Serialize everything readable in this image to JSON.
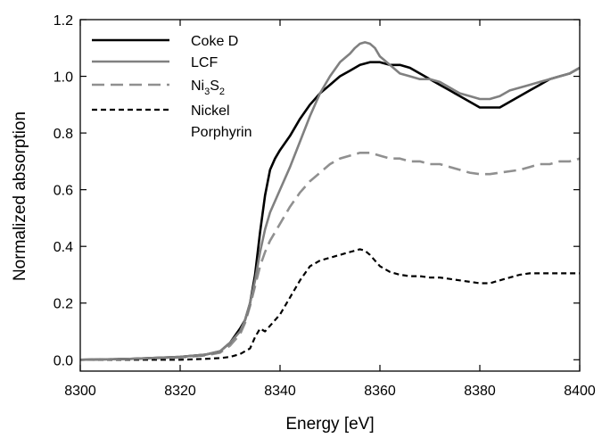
{
  "chart_data": {
    "type": "line",
    "title": "",
    "xlabel": "Energy [eV]",
    "ylabel": "Normalized absorption",
    "xlim": [
      8300,
      8400
    ],
    "ylim": [
      -0.04,
      1.2
    ],
    "xticks": [
      8300,
      8320,
      8340,
      8360,
      8380,
      8400
    ],
    "yticks": [
      0.0,
      0.2,
      0.4,
      0.6,
      0.8,
      1.0,
      1.2
    ],
    "xtick_labels": [
      "8300",
      "8320",
      "8340",
      "8360",
      "8380",
      "8400"
    ],
    "ytick_labels": [
      "0.0",
      "0.2",
      "0.4",
      "0.6",
      "0.8",
      "1.0",
      "1.2"
    ],
    "grid": false,
    "legend_position": "top-left",
    "series": [
      {
        "name": "Coke D",
        "color": "#000000",
        "dash": "solid",
        "x": [
          8300,
          8310,
          8320,
          8325,
          8328,
          8330,
          8332,
          8333,
          8334,
          8335,
          8336,
          8337,
          8338,
          8339,
          8340,
          8342,
          8344,
          8346,
          8348,
          8350,
          8352,
          8354,
          8356,
          8358,
          8360,
          8362,
          8364,
          8366,
          8368,
          8370,
          8372,
          8374,
          8376,
          8378,
          8380,
          8382,
          8384,
          8386,
          8388,
          8390,
          8392,
          8394,
          8396,
          8398,
          8400
        ],
        "y": [
          0.0,
          0.003,
          0.01,
          0.018,
          0.03,
          0.06,
          0.11,
          0.14,
          0.2,
          0.3,
          0.45,
          0.58,
          0.67,
          0.71,
          0.74,
          0.79,
          0.85,
          0.9,
          0.94,
          0.97,
          1.0,
          1.02,
          1.04,
          1.05,
          1.05,
          1.04,
          1.04,
          1.03,
          1.01,
          0.99,
          0.97,
          0.95,
          0.93,
          0.91,
          0.89,
          0.89,
          0.89,
          0.91,
          0.93,
          0.95,
          0.97,
          0.99,
          1.0,
          1.01,
          1.03
        ]
      },
      {
        "name": "LCF",
        "color": "#808080",
        "dash": "solid",
        "x": [
          8300,
          8310,
          8320,
          8325,
          8328,
          8330,
          8332,
          8333,
          8334,
          8335,
          8336,
          8337,
          8338,
          8339,
          8340,
          8342,
          8344,
          8346,
          8348,
          8350,
          8352,
          8354,
          8355,
          8356,
          8357,
          8358,
          8359,
          8360,
          8362,
          8364,
          8366,
          8368,
          8370,
          8372,
          8374,
          8376,
          8378,
          8380,
          8382,
          8384,
          8386,
          8388,
          8390,
          8392,
          8394,
          8396,
          8398,
          8400
        ],
        "y": [
          0.0,
          0.003,
          0.01,
          0.018,
          0.03,
          0.06,
          0.1,
          0.14,
          0.2,
          0.28,
          0.38,
          0.46,
          0.52,
          0.56,
          0.6,
          0.68,
          0.77,
          0.86,
          0.94,
          1.0,
          1.05,
          1.08,
          1.1,
          1.115,
          1.12,
          1.115,
          1.1,
          1.07,
          1.04,
          1.01,
          1.0,
          0.99,
          0.99,
          0.98,
          0.96,
          0.94,
          0.93,
          0.92,
          0.92,
          0.93,
          0.95,
          0.96,
          0.97,
          0.98,
          0.99,
          1.0,
          1.01,
          1.03
        ]
      },
      {
        "name": "Ni3S2",
        "color": "#909090",
        "dash": "long-dash",
        "x": [
          8300,
          8310,
          8320,
          8325,
          8328,
          8330,
          8332,
          8333,
          8334,
          8335,
          8336,
          8337,
          8338,
          8339,
          8340,
          8342,
          8344,
          8346,
          8348,
          8350,
          8352,
          8354,
          8356,
          8358,
          8360,
          8362,
          8364,
          8366,
          8368,
          8370,
          8372,
          8374,
          8376,
          8378,
          8380,
          8382,
          8384,
          8386,
          8388,
          8390,
          8392,
          8394,
          8396,
          8398,
          8400
        ],
        "y": [
          0.0,
          0.003,
          0.008,
          0.015,
          0.025,
          0.05,
          0.09,
          0.13,
          0.19,
          0.26,
          0.33,
          0.38,
          0.42,
          0.45,
          0.48,
          0.54,
          0.59,
          0.63,
          0.66,
          0.69,
          0.71,
          0.72,
          0.73,
          0.73,
          0.72,
          0.71,
          0.71,
          0.7,
          0.7,
          0.69,
          0.69,
          0.68,
          0.67,
          0.66,
          0.655,
          0.655,
          0.66,
          0.665,
          0.67,
          0.68,
          0.69,
          0.69,
          0.7,
          0.7,
          0.71
        ]
      },
      {
        "name": "Nickel Porphyrin",
        "color": "#000000",
        "dash": "short-dash",
        "x": [
          8300,
          8310,
          8320,
          8325,
          8328,
          8330,
          8332,
          8334,
          8335,
          8336,
          8337,
          8338,
          8340,
          8342,
          8344,
          8346,
          8348,
          8350,
          8352,
          8354,
          8355,
          8356,
          8357,
          8358,
          8360,
          8362,
          8364,
          8366,
          8368,
          8370,
          8372,
          8374,
          8376,
          8378,
          8380,
          8382,
          8384,
          8386,
          8388,
          8390,
          8392,
          8394,
          8396,
          8398,
          8400
        ],
        "y": [
          0.0,
          0.0,
          0.0,
          0.003,
          0.006,
          0.01,
          0.02,
          0.04,
          0.08,
          0.11,
          0.1,
          0.12,
          0.16,
          0.22,
          0.28,
          0.33,
          0.35,
          0.36,
          0.37,
          0.38,
          0.385,
          0.39,
          0.385,
          0.37,
          0.33,
          0.31,
          0.3,
          0.295,
          0.295,
          0.29,
          0.29,
          0.285,
          0.28,
          0.275,
          0.27,
          0.27,
          0.28,
          0.29,
          0.3,
          0.305,
          0.305,
          0.305,
          0.305,
          0.305,
          0.305
        ]
      }
    ],
    "legend": [
      {
        "text": "Coke D",
        "series": 0
      },
      {
        "text": "LCF",
        "series": 1
      },
      {
        "text": "Ni",
        "sub1": "3",
        "mid": "S",
        "sub2": "2",
        "series": 2
      },
      {
        "text": "Nickel",
        "text2": "Porphyrin",
        "series": 3
      }
    ]
  }
}
